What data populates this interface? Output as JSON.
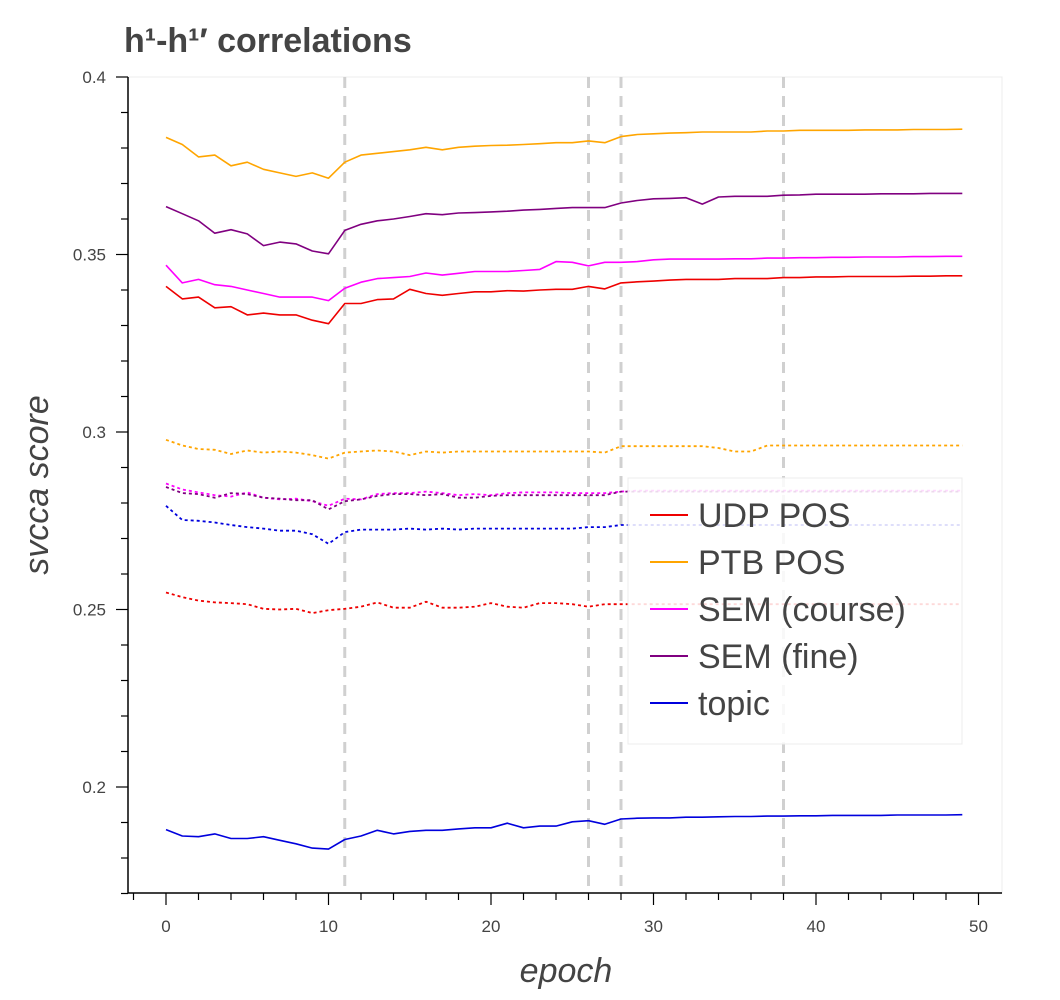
{
  "chart_data": {
    "type": "line",
    "title": "h¹-h¹′ correlations",
    "xlabel": "epoch",
    "ylabel": "svcca score",
    "xlim": [
      -2.5,
      51.5
    ],
    "ylim": [
      0.17,
      0.4
    ],
    "xticks": [
      0,
      10,
      20,
      30,
      40,
      50
    ],
    "yticks": [
      0.2,
      0.25,
      0.3,
      0.35,
      0.4
    ],
    "ytick_labels": [
      "0.2",
      "0.25",
      "0.3",
      "0.35",
      "0.4"
    ],
    "vlines": [
      11,
      26,
      28,
      38
    ],
    "legend_position": "center-right",
    "series": [
      {
        "name": "UDP POS",
        "color": "#ee0000",
        "dash": "solid",
        "in_legend": true,
        "values": [
          0.341,
          0.3375,
          0.338,
          0.335,
          0.3353,
          0.333,
          0.3335,
          0.333,
          0.333,
          0.3315,
          0.3305,
          0.3362,
          0.3362,
          0.3373,
          0.3375,
          0.3402,
          0.339,
          0.3385,
          0.339,
          0.3395,
          0.3395,
          0.3398,
          0.3397,
          0.34,
          0.3402,
          0.3402,
          0.341,
          0.3403,
          0.342,
          0.3423,
          0.3425,
          0.3428,
          0.343,
          0.343,
          0.343,
          0.3432,
          0.3432,
          0.3432,
          0.3435,
          0.3435,
          0.3437,
          0.3437,
          0.3438,
          0.3438,
          0.3438,
          0.3438,
          0.3439,
          0.3439,
          0.344,
          0.344
        ]
      },
      {
        "name": "PTB POS",
        "color": "#ffa500",
        "dash": "solid",
        "in_legend": true,
        "values": [
          0.383,
          0.381,
          0.3775,
          0.378,
          0.375,
          0.376,
          0.374,
          0.373,
          0.372,
          0.373,
          0.3715,
          0.376,
          0.378,
          0.3785,
          0.379,
          0.3795,
          0.3802,
          0.3795,
          0.3802,
          0.3805,
          0.3807,
          0.3808,
          0.381,
          0.3812,
          0.3815,
          0.3815,
          0.382,
          0.3815,
          0.3832,
          0.3838,
          0.384,
          0.3842,
          0.3843,
          0.3845,
          0.3845,
          0.3845,
          0.3845,
          0.3848,
          0.3848,
          0.385,
          0.385,
          0.385,
          0.385,
          0.3851,
          0.3851,
          0.3851,
          0.3852,
          0.3852,
          0.3852,
          0.3853
        ]
      },
      {
        "name": "SEM (course)",
        "color": "#ff00ff",
        "dash": "solid",
        "in_legend": true,
        "values": [
          0.347,
          0.342,
          0.343,
          0.3415,
          0.341,
          0.34,
          0.339,
          0.338,
          0.338,
          0.338,
          0.337,
          0.3405,
          0.3422,
          0.3432,
          0.3435,
          0.3438,
          0.3448,
          0.3442,
          0.3447,
          0.3452,
          0.3452,
          0.3452,
          0.3455,
          0.3458,
          0.348,
          0.3478,
          0.3468,
          0.3478,
          0.3478,
          0.348,
          0.3485,
          0.3487,
          0.3487,
          0.3487,
          0.3487,
          0.3488,
          0.3488,
          0.349,
          0.349,
          0.3491,
          0.3491,
          0.3492,
          0.3492,
          0.3493,
          0.3493,
          0.3493,
          0.3494,
          0.3494,
          0.3495,
          0.3495
        ]
      },
      {
        "name": "SEM (fine)",
        "color": "#800080",
        "dash": "solid",
        "in_legend": true,
        "values": [
          0.3635,
          0.3615,
          0.3595,
          0.356,
          0.357,
          0.3558,
          0.3525,
          0.3535,
          0.353,
          0.351,
          0.3502,
          0.3568,
          0.3585,
          0.3595,
          0.36,
          0.3607,
          0.3615,
          0.3612,
          0.3617,
          0.3618,
          0.362,
          0.3622,
          0.3625,
          0.3627,
          0.363,
          0.3632,
          0.3632,
          0.3632,
          0.3645,
          0.3652,
          0.3657,
          0.3658,
          0.366,
          0.3642,
          0.3662,
          0.3664,
          0.3664,
          0.3664,
          0.3667,
          0.3668,
          0.367,
          0.367,
          0.367,
          0.367,
          0.3671,
          0.3671,
          0.3671,
          0.3672,
          0.3672,
          0.3672
        ]
      },
      {
        "name": "topic",
        "color": "#0000dd",
        "dash": "solid",
        "in_legend": true,
        "values": [
          0.188,
          0.1862,
          0.186,
          0.1868,
          0.1855,
          0.1855,
          0.186,
          0.185,
          0.184,
          0.1828,
          0.1825,
          0.1852,
          0.1862,
          0.1878,
          0.1868,
          0.1875,
          0.1878,
          0.1878,
          0.1882,
          0.1885,
          0.1885,
          0.1898,
          0.1885,
          0.189,
          0.189,
          0.1902,
          0.1905,
          0.1895,
          0.191,
          0.1912,
          0.1913,
          0.1913,
          0.1915,
          0.1915,
          0.1916,
          0.1917,
          0.1917,
          0.1918,
          0.1918,
          0.1919,
          0.1919,
          0.192,
          0.192,
          0.192,
          0.192,
          0.1921,
          0.1921,
          0.1921,
          0.1921,
          0.1922
        ]
      },
      {
        "name": "UDP POS (dotted)",
        "color": "#ee0000",
        "dash": "dotted",
        "in_legend": false,
        "values": [
          0.2548,
          0.2535,
          0.2525,
          0.252,
          0.2518,
          0.2515,
          0.2502,
          0.25,
          0.2502,
          0.249,
          0.2498,
          0.2502,
          0.2508,
          0.252,
          0.2505,
          0.2505,
          0.2522,
          0.2505,
          0.2505,
          0.2508,
          0.2518,
          0.2508,
          0.2505,
          0.2518,
          0.2518,
          0.2515,
          0.2508,
          0.2515,
          0.2515,
          0.2515,
          0.2515,
          0.2515,
          0.2515,
          0.2515,
          0.2515,
          0.2515,
          0.2515,
          0.2515,
          0.2515,
          0.2515,
          0.2515,
          0.2515,
          0.2515,
          0.2515,
          0.2515,
          0.2515,
          0.2515,
          0.2515,
          0.2515,
          0.2515
        ]
      },
      {
        "name": "PTB POS (dotted)",
        "color": "#ffa500",
        "dash": "dotted",
        "in_legend": false,
        "values": [
          0.2978,
          0.2962,
          0.2952,
          0.295,
          0.2938,
          0.2948,
          0.2942,
          0.2945,
          0.2942,
          0.2935,
          0.2925,
          0.2942,
          0.2945,
          0.2948,
          0.2945,
          0.2935,
          0.2945,
          0.2942,
          0.2945,
          0.2945,
          0.2945,
          0.2945,
          0.2945,
          0.2945,
          0.2945,
          0.2945,
          0.2945,
          0.2942,
          0.296,
          0.296,
          0.296,
          0.296,
          0.296,
          0.296,
          0.2955,
          0.2945,
          0.2945,
          0.2962,
          0.2962,
          0.2962,
          0.2962,
          0.2962,
          0.2962,
          0.2962,
          0.2962,
          0.2962,
          0.2962,
          0.2962,
          0.2962,
          0.2962
        ]
      },
      {
        "name": "SEM (course) (dotted)",
        "color": "#ff00ff",
        "dash": "dotted",
        "in_legend": false,
        "values": [
          0.2855,
          0.2838,
          0.283,
          0.2822,
          0.2818,
          0.283,
          0.2815,
          0.281,
          0.2812,
          0.2805,
          0.2792,
          0.2812,
          0.281,
          0.2825,
          0.2828,
          0.2828,
          0.2832,
          0.2828,
          0.2822,
          0.2825,
          0.2822,
          0.2828,
          0.283,
          0.283,
          0.283,
          0.2828,
          0.2828,
          0.2828,
          0.2832,
          0.2835,
          0.2835,
          0.2835,
          0.2835,
          0.2835,
          0.2835,
          0.2835,
          0.2835,
          0.2835,
          0.2835,
          0.2835,
          0.2835,
          0.2835,
          0.2835,
          0.2835,
          0.2835,
          0.2835,
          0.2835,
          0.2835,
          0.2835,
          0.2835
        ]
      },
      {
        "name": "SEM (fine) (dotted)",
        "color": "#800080",
        "dash": "dotted",
        "in_legend": false,
        "values": [
          0.2845,
          0.2828,
          0.2825,
          0.2815,
          0.2828,
          0.2825,
          0.2815,
          0.2812,
          0.2808,
          0.2808,
          0.2782,
          0.2805,
          0.281,
          0.282,
          0.2825,
          0.2825,
          0.2822,
          0.2825,
          0.2815,
          0.2815,
          0.282,
          0.2822,
          0.2822,
          0.2822,
          0.2822,
          0.2822,
          0.2822,
          0.2822,
          0.2832,
          0.2832,
          0.2832,
          0.2832,
          0.2832,
          0.2832,
          0.2832,
          0.2832,
          0.2832,
          0.2832,
          0.2832,
          0.2832,
          0.2832,
          0.2832,
          0.2832,
          0.2832,
          0.2832,
          0.2832,
          0.2832,
          0.2832,
          0.2832,
          0.2832
        ]
      },
      {
        "name": "topic (dotted)",
        "color": "#0000dd",
        "dash": "dotted",
        "in_legend": false,
        "values": [
          0.2792,
          0.2752,
          0.275,
          0.2745,
          0.2738,
          0.2732,
          0.2728,
          0.2722,
          0.2722,
          0.2712,
          0.2685,
          0.2718,
          0.2725,
          0.2725,
          0.2725,
          0.2728,
          0.2725,
          0.2728,
          0.2725,
          0.2728,
          0.2728,
          0.2728,
          0.2728,
          0.2728,
          0.2728,
          0.2728,
          0.2732,
          0.2732,
          0.2738,
          0.2738,
          0.2738,
          0.2738,
          0.2738,
          0.2738,
          0.2738,
          0.2738,
          0.2738,
          0.2738,
          0.2738,
          0.2738,
          0.2738,
          0.2738,
          0.2738,
          0.2738,
          0.2738,
          0.2738,
          0.2738,
          0.2738,
          0.2738,
          0.2738
        ]
      }
    ]
  }
}
